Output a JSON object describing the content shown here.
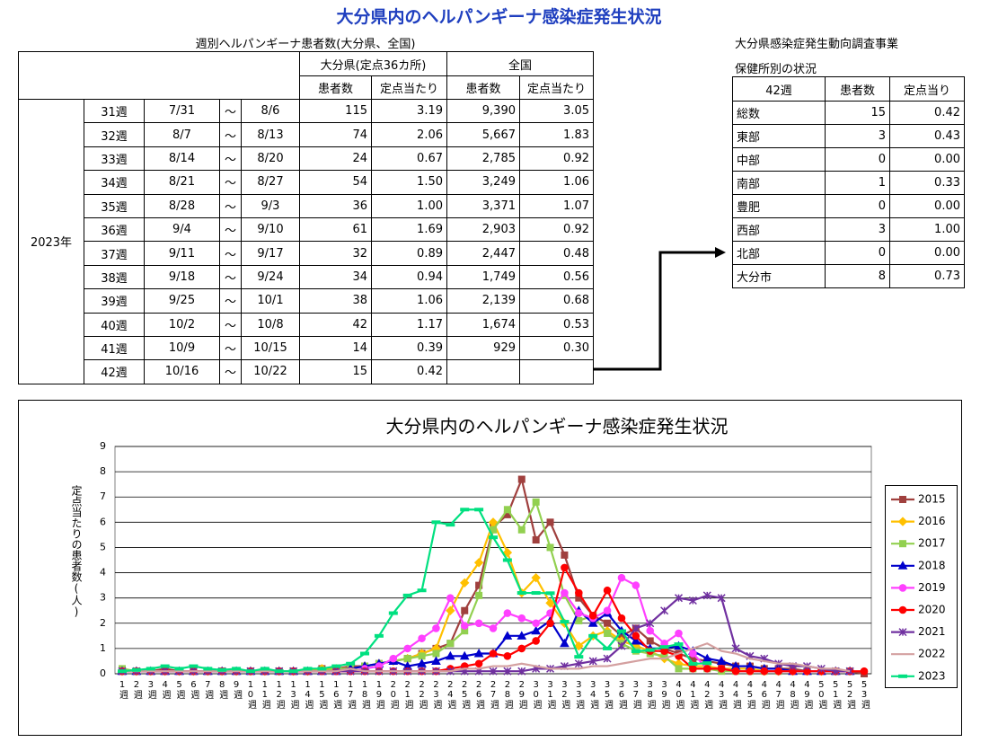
{
  "title": "大分県内のヘルパンギーナ感染症発生状況",
  "weekly_table": {
    "caption": "週別ヘルパンギーナ患者数(大分県、全国)",
    "header_groups": [
      "大分県(定点36カ所)",
      "全国"
    ],
    "sub_headers": [
      "患者数",
      "定点当たり",
      "患者数",
      "定点当たり"
    ],
    "year": "2023年",
    "rows": [
      [
        "31週",
        "7/31",
        "～",
        "8/6",
        "115",
        "3.19",
        "9,390",
        "3.05"
      ],
      [
        "32週",
        "8/7",
        "～",
        "8/13",
        "74",
        "2.06",
        "5,667",
        "1.83"
      ],
      [
        "33週",
        "8/14",
        "～",
        "8/20",
        "24",
        "0.67",
        "2,785",
        "0.92"
      ],
      [
        "34週",
        "8/21",
        "～",
        "8/27",
        "54",
        "1.50",
        "3,249",
        "1.06"
      ],
      [
        "35週",
        "8/28",
        "～",
        "9/3",
        "36",
        "1.00",
        "3,371",
        "1.07"
      ],
      [
        "36週",
        "9/4",
        "～",
        "9/10",
        "61",
        "1.69",
        "2,903",
        "0.92"
      ],
      [
        "37週",
        "9/11",
        "～",
        "9/17",
        "32",
        "0.89",
        "2,447",
        "0.48"
      ],
      [
        "38週",
        "9/18",
        "～",
        "9/24",
        "34",
        "0.94",
        "1,749",
        "0.56"
      ],
      [
        "39週",
        "9/25",
        "～",
        "10/1",
        "38",
        "1.06",
        "2,139",
        "0.68"
      ],
      [
        "40週",
        "10/2",
        "～",
        "10/8",
        "42",
        "1.17",
        "1,674",
        "0.53"
      ],
      [
        "41週",
        "10/9",
        "～",
        "10/15",
        "14",
        "0.39",
        "929",
        "0.30"
      ],
      [
        "42週",
        "10/16",
        "～",
        "10/22",
        "15",
        "0.42"
      ]
    ]
  },
  "district_table": {
    "caption_lines": [
      "大分県感染症発生動向調査事業",
      "保健所別の状況"
    ],
    "header": [
      "42週",
      "患者数",
      "定点当り"
    ],
    "rows": [
      [
        "総数",
        "15",
        "0.42"
      ],
      [
        "東部",
        "3",
        "0.43"
      ],
      [
        "中部",
        "0",
        "0.00"
      ],
      [
        "南部",
        "1",
        "0.33"
      ],
      [
        "豊肥",
        "0",
        "0.00"
      ],
      [
        "西部",
        "3",
        "1.00"
      ],
      [
        "北部",
        "0",
        "0.00"
      ],
      [
        "大分市",
        "8",
        "0.73"
      ]
    ]
  },
  "chart_data": {
    "type": "line",
    "title": "大分県内のヘルパンギーナ感染症発生状況",
    "y_label": "定点当たりの患者数(人)",
    "categories": [
      "1週",
      "2週",
      "3週",
      "4週",
      "5週",
      "6週",
      "7週",
      "8週",
      "9週",
      "10週",
      "11週",
      "12週",
      "13週",
      "14週",
      "15週",
      "16週",
      "17週",
      "18週",
      "19週",
      "20週",
      "21週",
      "22週",
      "23週",
      "24週",
      "25週",
      "26週",
      "27週",
      "28週",
      "29週",
      "30週",
      "31週",
      "32週",
      "33週",
      "34週",
      "35週",
      "36週",
      "37週",
      "38週",
      "39週",
      "40週",
      "41週",
      "42週",
      "43週",
      "44週",
      "45週",
      "46週",
      "47週",
      "48週",
      "49週",
      "50週",
      "51週",
      "52週",
      "53週"
    ],
    "ylim": [
      0,
      9
    ],
    "yticks": [
      0,
      1,
      2,
      3,
      4,
      5,
      6,
      7,
      8,
      9
    ],
    "grid": true,
    "legend": "right",
    "series": [
      {
        "name": "2015",
        "color": "#a0403e",
        "marker": "square",
        "values": [
          0.1,
          0.1,
          0.1,
          0.2,
          0.1,
          0.1,
          0.1,
          0.1,
          0.1,
          0.1,
          0.1,
          0.1,
          0.1,
          0.1,
          0.2,
          0.2,
          0.3,
          0.3,
          0.4,
          0.5,
          0.6,
          0.8,
          1.0,
          1.2,
          2.5,
          3.5,
          5.8,
          6.3,
          7.7,
          5.3,
          6.0,
          4.7,
          3.0,
          2.3,
          2.0,
          1.5,
          1.8,
          1.3,
          1.0,
          0.8,
          0.6,
          0.5,
          0.4,
          0.3,
          0.3,
          0.2,
          0.2,
          0.2,
          0.1,
          0.1,
          0.1,
          0.1,
          0
        ]
      },
      {
        "name": "2016",
        "color": "#ffc000",
        "marker": "diamond",
        "values": [
          0.1,
          0.1,
          0.1,
          0.1,
          0.1,
          0.1,
          0.1,
          0.1,
          0.1,
          0.1,
          0.1,
          0.1,
          0.1,
          0.1,
          0.2,
          0.2,
          0.2,
          0.3,
          0.4,
          0.5,
          0.6,
          0.8,
          1.0,
          2.5,
          3.6,
          4.4,
          6.0,
          4.8,
          3.2,
          3.8,
          2.8,
          2.0,
          1.1,
          1.5,
          1.7,
          1.3,
          1.1,
          0.9,
          0.6,
          0.4,
          0.3,
          0.3,
          0.2,
          0.2,
          0.2,
          0.1,
          0.1,
          0.1,
          0.1,
          0.1,
          0.1,
          0.1,
          null
        ]
      },
      {
        "name": "2017",
        "color": "#92d050",
        "marker": "square",
        "values": [
          0.2,
          0.1,
          0.1,
          0.1,
          0.1,
          0.1,
          0.1,
          0.1,
          0.1,
          0.1,
          0.1,
          0.1,
          0.1,
          0.1,
          0.1,
          0.2,
          0.2,
          0.3,
          0.4,
          0.5,
          0.6,
          0.7,
          0.8,
          1.2,
          1.7,
          3.1,
          5.7,
          6.5,
          5.7,
          6.8,
          5.0,
          3.1,
          2.1,
          2.3,
          1.6,
          1.2,
          0.9,
          0.8,
          0.7,
          0.2,
          0.2,
          0.2,
          0.1,
          0.1,
          0.1,
          0.1,
          0.1,
          0.1,
          0.1,
          0.1,
          0.1,
          0.1,
          null
        ]
      },
      {
        "name": "2018",
        "color": "#0000cc",
        "marker": "triangle",
        "values": [
          0.1,
          0.1,
          0.1,
          0.1,
          0.1,
          0.1,
          0.1,
          0.1,
          0.1,
          0.1,
          0.1,
          0.1,
          0.1,
          0.1,
          0.1,
          0.1,
          0.2,
          0.3,
          0.4,
          0.5,
          0.3,
          0.4,
          0.5,
          0.7,
          0.7,
          0.8,
          0.8,
          1.5,
          1.5,
          1.7,
          2.1,
          1.2,
          2.5,
          2.0,
          2.4,
          1.7,
          1.3,
          1.0,
          1.0,
          1.1,
          0.9,
          0.6,
          0.5,
          0.3,
          0.3,
          0.2,
          0.2,
          0.1,
          0.1,
          0.1,
          0.1,
          0.1,
          null
        ]
      },
      {
        "name": "2019",
        "color": "#ff40ff",
        "marker": "circle",
        "values": [
          0.1,
          0.1,
          0.1,
          0.1,
          0.1,
          0.1,
          0.1,
          0.1,
          0.1,
          0.1,
          0.1,
          0.1,
          0.1,
          0.1,
          0.1,
          0.1,
          0.1,
          0.2,
          0.3,
          0.6,
          1.0,
          1.4,
          1.8,
          3.0,
          1.9,
          2.0,
          1.8,
          2.4,
          2.2,
          2.0,
          2.4,
          3.2,
          2.4,
          2.2,
          2.5,
          3.8,
          3.5,
          1.7,
          1.2,
          1.6,
          0.8,
          0.2,
          0.2,
          0.1,
          0.1,
          0.1,
          0.1,
          0.1,
          0.1,
          0.1,
          0.1,
          0.1,
          null
        ]
      },
      {
        "name": "2020",
        "color": "#ff0000",
        "marker": "circle",
        "values": [
          0.1,
          0.1,
          0.1,
          0.1,
          0.1,
          0.1,
          0.1,
          0.1,
          0.1,
          0.1,
          0.1,
          0.1,
          0.1,
          0.1,
          0.1,
          0.1,
          0.1,
          0.1,
          0.1,
          0.1,
          0.1,
          0.1,
          0.1,
          0.2,
          0.3,
          0.4,
          0.8,
          0.7,
          1.0,
          1.3,
          2.0,
          4.2,
          3.2,
          2.3,
          3.3,
          2.2,
          1.5,
          0.9,
          0.9,
          0.7,
          0.2,
          0.2,
          0.2,
          0.1,
          0.1,
          0.1,
          0.1,
          0.1,
          0.1,
          0.1,
          0.1,
          0.1,
          0.1
        ]
      },
      {
        "name": "2021",
        "color": "#7030a0",
        "marker": "cross",
        "values": [
          0.1,
          0.1,
          0.1,
          0.1,
          0.1,
          0.1,
          0.1,
          0.1,
          0.1,
          0.1,
          0.1,
          0.1,
          0.1,
          0.1,
          0.1,
          0.1,
          0.1,
          0.1,
          0.1,
          0.1,
          0.1,
          0.1,
          0.1,
          0.1,
          0.1,
          0.1,
          0.1,
          0.1,
          0.1,
          0.2,
          0.2,
          0.3,
          0.4,
          0.5,
          0.6,
          1.1,
          1.8,
          2.0,
          2.5,
          3.0,
          2.9,
          3.1,
          3.0,
          1.0,
          0.7,
          0.6,
          0.4,
          0.3,
          0.3,
          0.2,
          0.1,
          0.1,
          null
        ]
      },
      {
        "name": "2022",
        "color": "#d4a0a0",
        "marker": "none",
        "values": [
          0.1,
          0.1,
          0.1,
          0.1,
          0.1,
          0.1,
          0.1,
          0.1,
          0.1,
          0.1,
          0.1,
          0.1,
          0.1,
          0.1,
          0.1,
          0.1,
          0.2,
          0.1,
          0.1,
          0.1,
          0.1,
          0.1,
          0.1,
          0.1,
          0.2,
          0.2,
          0.3,
          0.3,
          0.4,
          0.3,
          0.2,
          0.2,
          0.2,
          0.3,
          0.3,
          0.4,
          0.5,
          0.6,
          0.6,
          0.8,
          1.0,
          1.2,
          0.9,
          0.8,
          0.6,
          0.5,
          0.4,
          0.4,
          0.3,
          0.2,
          0.2,
          0.1,
          null
        ]
      },
      {
        "name": "2023",
        "color": "#00e080",
        "marker": "dash",
        "values": [
          0.1,
          0.15,
          0.2,
          0.3,
          0.2,
          0.3,
          0.2,
          0.15,
          0.2,
          0.1,
          0.2,
          0.1,
          0.1,
          0.2,
          0.2,
          0.3,
          0.4,
          0.8,
          1.5,
          2.4,
          3.1,
          3.3,
          6.0,
          5.9,
          6.5,
          6.5,
          5.4,
          4.5,
          3.2,
          3.2,
          3.19,
          2.06,
          0.67,
          1.5,
          1.0,
          1.69,
          0.89,
          0.94,
          1.06,
          1.17,
          0.39,
          0.42,
          null,
          null,
          null,
          null,
          null,
          null,
          null,
          null,
          null,
          null,
          null
        ]
      }
    ]
  }
}
